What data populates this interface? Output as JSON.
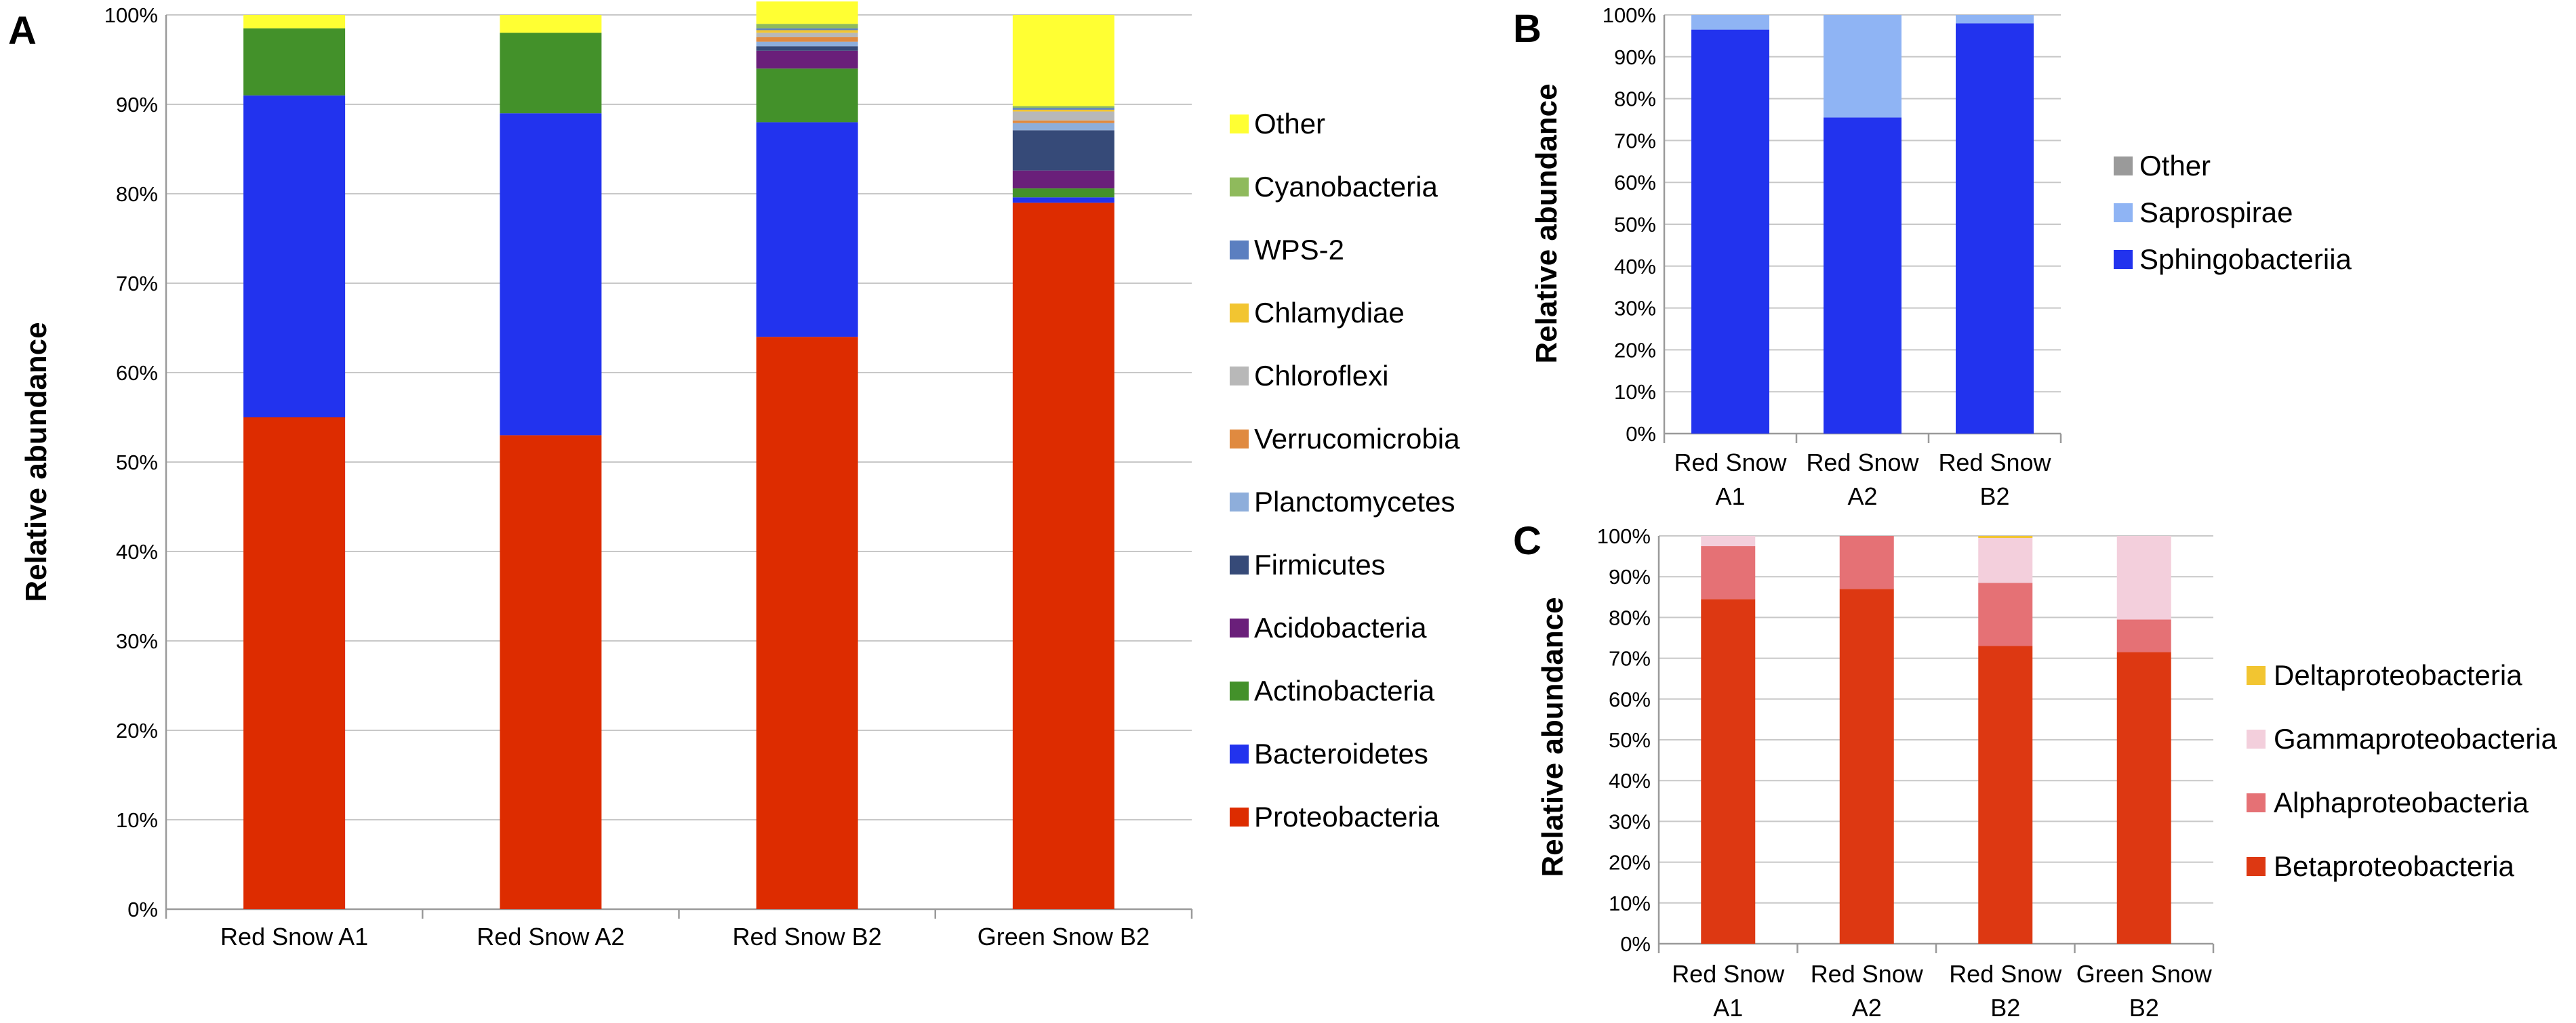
{
  "chart_data": [
    {
      "panel": "A",
      "type": "bar",
      "stacked": true,
      "ylabel": "Relative abundance",
      "xlabel": "",
      "ylim": [
        0,
        100
      ],
      "yticks": [
        "0%",
        "10%",
        "20%",
        "30%",
        "40%",
        "50%",
        "60%",
        "70%",
        "80%",
        "90%",
        "100%"
      ],
      "categories": [
        "Red Snow A1",
        "Red Snow A2",
        "Red Snow B2",
        "Green Snow B2"
      ],
      "series": [
        {
          "name": "Proteobacteria",
          "color": "#dd2c00",
          "values": [
            55,
            53,
            64,
            79
          ]
        },
        {
          "name": "Bacteroidetes",
          "color": "#2233ee",
          "values": [
            36,
            36,
            24,
            0.6
          ]
        },
        {
          "name": "Actinobacteria",
          "color": "#43912a",
          "values": [
            7.5,
            9,
            6,
            1
          ]
        },
        {
          "name": "Acidobacteria",
          "color": "#6a1f7a",
          "values": [
            0,
            0,
            2,
            2
          ]
        },
        {
          "name": "Firmicutes",
          "color": "#364a78",
          "values": [
            0,
            0,
            0.5,
            4.5
          ]
        },
        {
          "name": "Planctomycetes",
          "color": "#8eaedb",
          "values": [
            0,
            0,
            0.5,
            0.8
          ]
        },
        {
          "name": "Verrucomicrobia",
          "color": "#e08a40",
          "values": [
            0,
            0,
            0.5,
            0.3
          ]
        },
        {
          "name": "Chloroflexi",
          "color": "#b8b8b8",
          "values": [
            0,
            0,
            0.5,
            1
          ]
        },
        {
          "name": "Chlamydiae",
          "color": "#f2c531",
          "values": [
            0,
            0,
            0.3,
            0.2
          ]
        },
        {
          "name": "WPS-2",
          "color": "#5b7fc0",
          "values": [
            0,
            0,
            0.2,
            0.2
          ]
        },
        {
          "name": "Cyanobacteria",
          "color": "#8fba5c",
          "values": [
            0,
            0,
            0.5,
            0.2
          ]
        },
        {
          "name": "Other",
          "color": "#ffff33",
          "values": [
            1.5,
            2,
            2.5,
            10.2
          ]
        }
      ]
    },
    {
      "panel": "B",
      "type": "bar",
      "stacked": true,
      "ylabel": "Relative abundance",
      "xlabel": "",
      "ylim": [
        0,
        100
      ],
      "yticks": [
        "0%",
        "10%",
        "20%",
        "30%",
        "40%",
        "50%",
        "60%",
        "70%",
        "80%",
        "90%",
        "100%"
      ],
      "categories": [
        [
          "Red Snow",
          "A1"
        ],
        [
          "Red Snow",
          "A2"
        ],
        [
          "Red Snow",
          "B2"
        ]
      ],
      "series": [
        {
          "name": "Sphingobacteriia",
          "color": "#2233ee",
          "values": [
            96.5,
            75.5,
            98
          ]
        },
        {
          "name": "Saprospirae",
          "color": "#8fb4f4",
          "values": [
            3.5,
            24.5,
            2
          ]
        },
        {
          "name": "Other",
          "color": "#9a9a9a",
          "values": [
            0,
            0,
            0
          ]
        }
      ]
    },
    {
      "panel": "C",
      "type": "bar",
      "stacked": true,
      "ylabel": "Relative abundance",
      "xlabel": "",
      "ylim": [
        0,
        100
      ],
      "yticks": [
        "0%",
        "10%",
        "20%",
        "30%",
        "40%",
        "50%",
        "60%",
        "70%",
        "80%",
        "90%",
        "100%"
      ],
      "categories": [
        [
          "Red Snow",
          "A1"
        ],
        [
          "Red Snow",
          "A2"
        ],
        [
          "Red Snow",
          "B2"
        ],
        [
          "Green Snow",
          "B2"
        ]
      ],
      "series": [
        {
          "name": "Betaproteobacteria",
          "color": "#dd3812",
          "values": [
            84.5,
            87,
            73,
            71.5
          ]
        },
        {
          "name": "Alphaproteobacteria",
          "color": "#e57175",
          "values": [
            13,
            13,
            15.5,
            8
          ]
        },
        {
          "name": "Gammaproteobacteria",
          "color": "#f3cfdc",
          "values": [
            2.5,
            0,
            11,
            20.5
          ]
        },
        {
          "name": "Deltaproteobacteria",
          "color": "#f2c531",
          "values": [
            0,
            0,
            0.5,
            0
          ]
        }
      ]
    }
  ]
}
